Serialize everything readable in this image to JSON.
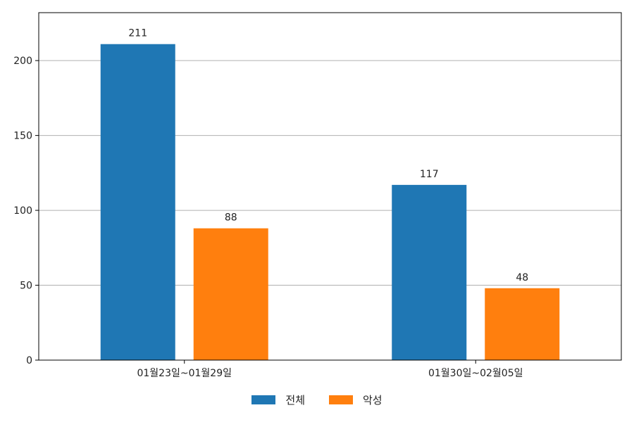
{
  "chart_data": {
    "type": "bar",
    "categories": [
      "01월23일~01월29일",
      "01월30일~02월05일"
    ],
    "series": [
      {
        "name": "전체",
        "values": [
          211,
          117
        ],
        "color": "#1f77b4"
      },
      {
        "name": "악성",
        "values": [
          88,
          48
        ],
        "color": "#ff7f0e"
      }
    ],
    "yticks": [
      0,
      50,
      100,
      150,
      200
    ],
    "ylim": [
      0,
      232
    ],
    "grid": true,
    "legend_position": "bottom-center",
    "data_labels": true
  }
}
